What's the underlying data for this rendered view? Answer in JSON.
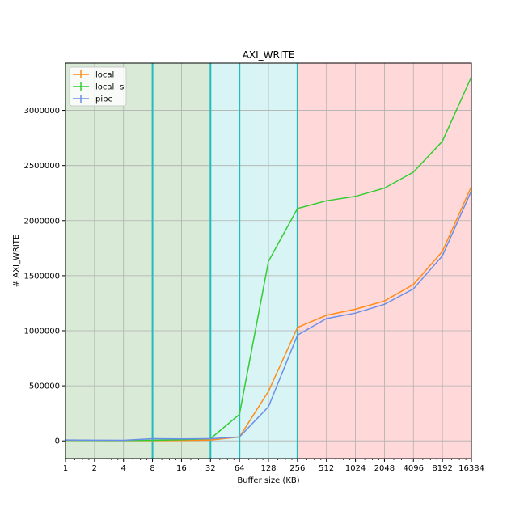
{
  "chart_data": {
    "type": "line",
    "title": "AXI_WRITE",
    "xlabel": "Buffer size (KB)",
    "ylabel": "# AXI_WRITE",
    "x_scale": "log2",
    "xlim": [
      1,
      16384
    ],
    "ylim": [
      -160000,
      3430000
    ],
    "x": [
      1,
      2,
      4,
      8,
      16,
      32,
      64,
      128,
      256,
      512,
      1024,
      2048,
      4096,
      8192,
      16384
    ],
    "x_tick_labels": [
      "1",
      "2",
      "4",
      "8",
      "16",
      "32",
      "64",
      "128",
      "256",
      "512",
      "1024",
      "2048",
      "4096",
      "8192",
      "16384"
    ],
    "y_ticks": [
      0,
      500000,
      1000000,
      1500000,
      2000000,
      2500000,
      3000000
    ],
    "y_tick_labels": [
      "0",
      "500000",
      "1000000",
      "1500000",
      "2000000",
      "2500000",
      "3000000"
    ],
    "grid": true,
    "legend_position": "top-left",
    "regions": [
      {
        "from": 1,
        "to": 32,
        "color": "#d9ead7"
      },
      {
        "from": 32,
        "to": 256,
        "color": "#d9f4f4"
      },
      {
        "from": 256,
        "to": 16384,
        "color": "#ffd9d9"
      }
    ],
    "vertical_lines": [
      8,
      32,
      64,
      256
    ],
    "vertical_line_color": "#22bcbc",
    "series": [
      {
        "name": "local",
        "color": "#ff8c1a",
        "values": [
          5000,
          3000,
          2000,
          2000,
          4000,
          8000,
          35000,
          450000,
          1030000,
          1140000,
          1195000,
          1270000,
          1420000,
          1720000,
          2310000
        ]
      },
      {
        "name": "local -s",
        "color": "#33cc33",
        "values": [
          5000,
          3000,
          3000,
          5000,
          10000,
          20000,
          240000,
          1630000,
          2110000,
          2180000,
          2220000,
          2295000,
          2440000,
          2720000,
          3305000
        ]
      },
      {
        "name": "pipe",
        "color": "#6a8fe8",
        "values": [
          8000,
          6000,
          5000,
          20000,
          18000,
          20000,
          35000,
          310000,
          960000,
          1110000,
          1160000,
          1240000,
          1380000,
          1680000,
          2270000
        ]
      }
    ]
  }
}
